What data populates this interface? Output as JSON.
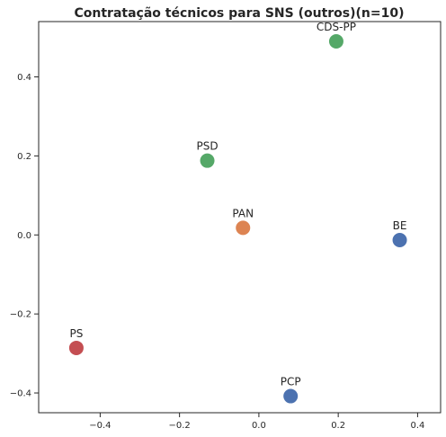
{
  "chart_data": {
    "type": "scatter",
    "title": "Contratação técnicos para SNS (outros)(n=10)",
    "xlabel": "",
    "ylabel": "",
    "xlim": [
      -0.555,
      0.458
    ],
    "ylim": [
      -0.45,
      0.54
    ],
    "xticks": [
      -0.4,
      -0.2,
      0.0,
      0.2,
      0.4
    ],
    "xtick_labels": [
      "−0.4",
      "−0.2",
      "0.0",
      "0.2",
      "0.4"
    ],
    "yticks": [
      -0.4,
      -0.2,
      0.0,
      0.2,
      0.4
    ],
    "ytick_labels": [
      "−0.4",
      "−0.2",
      "0.0",
      "0.2",
      "0.4"
    ],
    "grid": false,
    "points": [
      {
        "label": "CDS-PP",
        "x": 0.195,
        "y": 0.49,
        "color": "#55a868"
      },
      {
        "label": "PSD",
        "x": -0.13,
        "y": 0.188,
        "color": "#55a868"
      },
      {
        "label": "PAN",
        "x": -0.04,
        "y": 0.018,
        "color": "#dd8452"
      },
      {
        "label": "BE",
        "x": 0.355,
        "y": -0.013,
        "color": "#4c72b0"
      },
      {
        "label": "PS",
        "x": -0.46,
        "y": -0.286,
        "color": "#c44e52"
      },
      {
        "label": "PCP",
        "x": 0.08,
        "y": -0.408,
        "color": "#4c72b0"
      }
    ]
  }
}
